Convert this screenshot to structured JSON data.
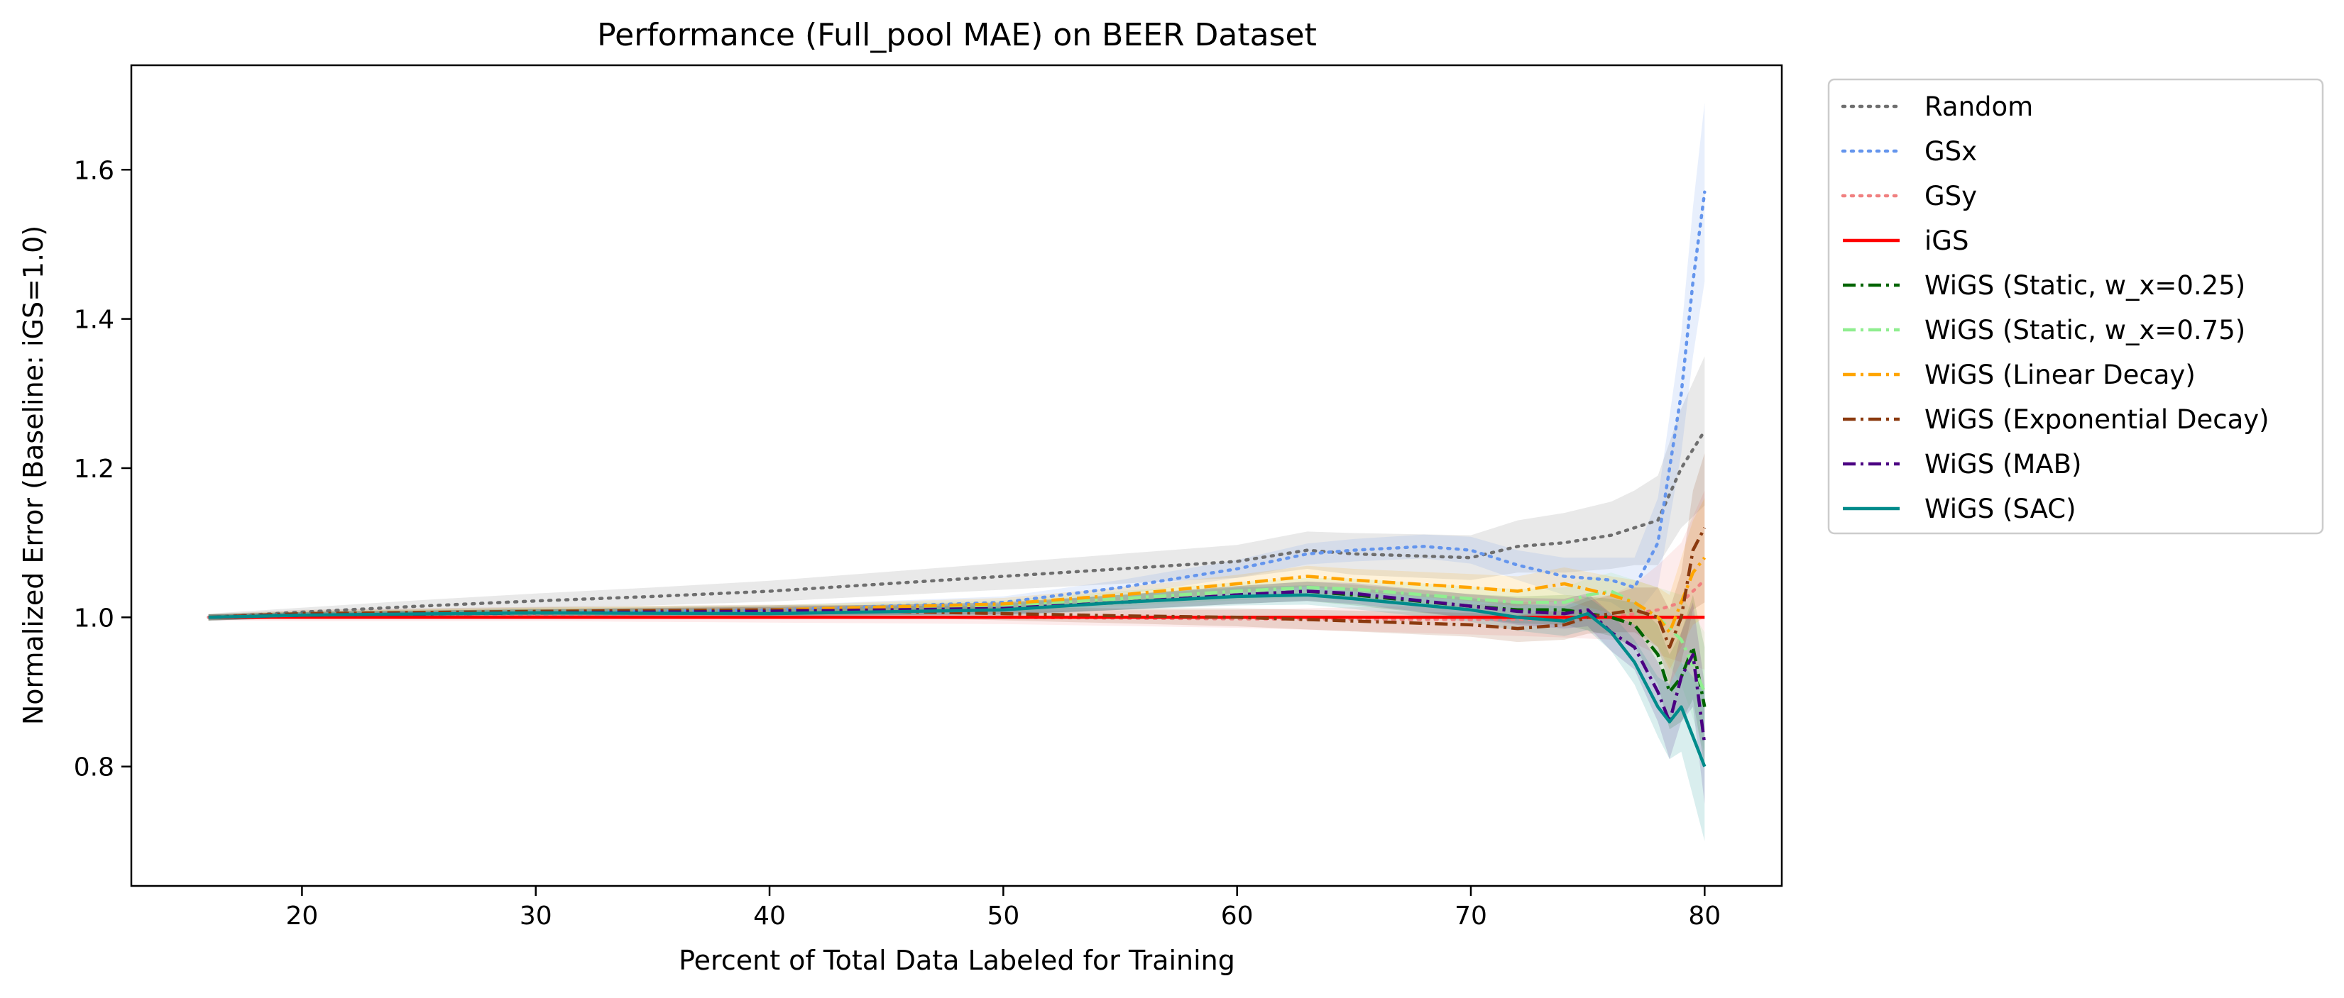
{
  "chart_data": {
    "type": "line",
    "title": "Performance (Full_pool MAE) on BEER Dataset",
    "xlabel": "Percent of Total Data Labeled for Training",
    "ylabel": "Normalized Error (Baseline: iGS=1.0)",
    "xlim": [
      12.7,
      83.3
    ],
    "ylim": [
      0.64,
      1.74
    ],
    "xticks": [
      20,
      30,
      40,
      50,
      60,
      70,
      80
    ],
    "yticks": [
      0.8,
      1.0,
      1.2,
      1.4,
      1.6
    ],
    "xtick_labels": [
      "20",
      "30",
      "40",
      "50",
      "60",
      "70",
      "80"
    ],
    "ytick_labels": [
      "0.8",
      "1.0",
      "1.2",
      "1.4",
      "1.6"
    ],
    "grid": false,
    "legend_position": "outside-right",
    "series": [
      {
        "name": "Random",
        "color": "#6e6e6e",
        "dash": "dotted",
        "x": [
          16,
          20,
          25,
          30,
          35,
          40,
          45,
          50,
          55,
          60,
          63,
          65,
          70,
          72,
          74,
          76,
          77,
          78,
          79,
          80
        ],
        "y": [
          1.0,
          1.007,
          1.015,
          1.022,
          1.028,
          1.035,
          1.045,
          1.055,
          1.065,
          1.075,
          1.09,
          1.085,
          1.08,
          1.095,
          1.1,
          1.11,
          1.12,
          1.13,
          1.2,
          1.25
        ],
        "band": [
          0.005,
          0.006,
          0.008,
          0.01,
          0.012,
          0.014,
          0.016,
          0.018,
          0.02,
          0.022,
          0.025,
          0.028,
          0.03,
          0.035,
          0.04,
          0.045,
          0.05,
          0.06,
          0.08,
          0.1
        ]
      },
      {
        "name": "GSx",
        "color": "#6495ed",
        "dash": "dotted",
        "x": [
          16,
          20,
          30,
          40,
          50,
          55,
          60,
          63,
          65,
          68,
          70,
          72,
          74,
          76,
          77,
          78,
          79,
          79.5,
          80
        ],
        "y": [
          1.0,
          1.003,
          1.006,
          1.01,
          1.02,
          1.04,
          1.065,
          1.085,
          1.09,
          1.095,
          1.09,
          1.07,
          1.055,
          1.05,
          1.04,
          1.1,
          1.3,
          1.45,
          1.57
        ],
        "band": [
          0.004,
          0.004,
          0.005,
          0.006,
          0.008,
          0.01,
          0.012,
          0.014,
          0.015,
          0.016,
          0.018,
          0.02,
          0.025,
          0.03,
          0.04,
          0.06,
          0.08,
          0.1,
          0.12
        ]
      },
      {
        "name": "GSy",
        "color": "#f08080",
        "dash": "dotted",
        "x": [
          16,
          20,
          30,
          40,
          50,
          60,
          70,
          74,
          76,
          77,
          78,
          79,
          80
        ],
        "y": [
          1.0,
          1.0,
          1.001,
          1.0,
          1.0,
          0.998,
          0.997,
          0.998,
          1.0,
          1.005,
          1.01,
          1.02,
          1.05
        ],
        "band": [
          0.004,
          0.005,
          0.006,
          0.007,
          0.009,
          0.012,
          0.02,
          0.025,
          0.03,
          0.04,
          0.06,
          0.08,
          0.12
        ]
      },
      {
        "name": "iGS",
        "color": "#ff0000",
        "dash": "solid",
        "x": [
          16,
          80
        ],
        "y": [
          1.0,
          1.0
        ]
      },
      {
        "name": "WiGS (Static, w_x=0.25)",
        "color": "#006400",
        "dash": "dashdot",
        "x": [
          16,
          20,
          30,
          40,
          50,
          55,
          60,
          63,
          65,
          70,
          72,
          74,
          76,
          77,
          78,
          78.5,
          79,
          79.5,
          80
        ],
        "y": [
          1.0,
          1.003,
          1.006,
          1.008,
          1.012,
          1.02,
          1.03,
          1.035,
          1.03,
          1.015,
          1.01,
          1.01,
          1.0,
          0.99,
          0.95,
          0.9,
          0.92,
          0.96,
          0.88
        ],
        "band": [
          0.004,
          0.004,
          0.005,
          0.006,
          0.008,
          0.01,
          0.012,
          0.013,
          0.014,
          0.016,
          0.018,
          0.02,
          0.025,
          0.03,
          0.04,
          0.05,
          0.06,
          0.07,
          0.08
        ]
      },
      {
        "name": "WiGS (Static, w_x=0.75)",
        "color": "#90ee90",
        "dash": "dashdot",
        "x": [
          16,
          20,
          30,
          40,
          50,
          55,
          60,
          63,
          65,
          70,
          72,
          74,
          75,
          76,
          77,
          78,
          79,
          80
        ],
        "y": [
          1.0,
          1.004,
          1.008,
          1.01,
          1.015,
          1.025,
          1.035,
          1.04,
          1.038,
          1.025,
          1.02,
          1.02,
          1.03,
          1.035,
          1.02,
          1.0,
          0.97,
          0.9
        ],
        "band": [
          0.004,
          0.004,
          0.005,
          0.006,
          0.008,
          0.01,
          0.012,
          0.013,
          0.014,
          0.016,
          0.018,
          0.02,
          0.022,
          0.025,
          0.03,
          0.04,
          0.06,
          0.08
        ]
      },
      {
        "name": "WiGS (Linear Decay)",
        "color": "#ffa500",
        "dash": "dashdot",
        "x": [
          16,
          20,
          30,
          40,
          50,
          55,
          60,
          63,
          65,
          70,
          72,
          74,
          76,
          77,
          78,
          78.5,
          79,
          79.5,
          80
        ],
        "y": [
          1.0,
          1.004,
          1.008,
          1.01,
          1.018,
          1.03,
          1.045,
          1.055,
          1.05,
          1.04,
          1.035,
          1.045,
          1.03,
          1.02,
          1.0,
          0.98,
          1.02,
          1.06,
          1.08
        ],
        "band": [
          0.004,
          0.004,
          0.005,
          0.006,
          0.008,
          0.01,
          0.012,
          0.014,
          0.015,
          0.018,
          0.02,
          0.022,
          0.025,
          0.03,
          0.04,
          0.05,
          0.06,
          0.07,
          0.08
        ]
      },
      {
        "name": "WiGS (Exponential Decay)",
        "color": "#8b3a0f",
        "dash": "dashdot",
        "x": [
          16,
          20,
          30,
          40,
          45,
          50,
          55,
          60,
          65,
          70,
          72,
          74,
          75,
          76,
          77,
          78,
          78.5,
          79,
          79.5,
          80
        ],
        "y": [
          1.0,
          1.005,
          1.008,
          1.01,
          1.008,
          1.005,
          1.002,
          1.0,
          0.995,
          0.99,
          0.985,
          0.99,
          1.0,
          1.005,
          1.01,
          1.0,
          0.96,
          1.0,
          1.09,
          1.12
        ],
        "band": [
          0.004,
          0.005,
          0.006,
          0.007,
          0.008,
          0.009,
          0.01,
          0.012,
          0.014,
          0.016,
          0.018,
          0.02,
          0.022,
          0.025,
          0.03,
          0.04,
          0.05,
          0.06,
          0.08,
          0.1
        ]
      },
      {
        "name": "WiGS (MAB)",
        "color": "#4b0082",
        "dash": "dashdot",
        "x": [
          16,
          20,
          30,
          40,
          50,
          55,
          60,
          63,
          65,
          70,
          72,
          74,
          75,
          76,
          77,
          78,
          78.5,
          79,
          79.5,
          80
        ],
        "y": [
          1.0,
          1.003,
          1.006,
          1.008,
          1.012,
          1.02,
          1.03,
          1.035,
          1.032,
          1.015,
          1.008,
          1.005,
          1.01,
          0.98,
          0.96,
          0.9,
          0.86,
          0.92,
          0.95,
          0.83
        ],
        "band": [
          0.004,
          0.004,
          0.005,
          0.006,
          0.008,
          0.01,
          0.012,
          0.013,
          0.014,
          0.016,
          0.018,
          0.02,
          0.022,
          0.025,
          0.03,
          0.04,
          0.05,
          0.06,
          0.07,
          0.08
        ]
      },
      {
        "name": "WiGS (SAC)",
        "color": "#008b8b",
        "dash": "solid",
        "x": [
          16,
          20,
          30,
          40,
          50,
          55,
          60,
          63,
          65,
          70,
          72,
          74,
          75,
          76,
          77,
          78,
          78.5,
          79,
          79.5,
          80
        ],
        "y": [
          1.0,
          1.003,
          1.006,
          1.005,
          1.01,
          1.02,
          1.028,
          1.03,
          1.025,
          1.01,
          1.0,
          0.995,
          1.005,
          0.98,
          0.94,
          0.88,
          0.86,
          0.88,
          0.84,
          0.8
        ],
        "band": [
          0.004,
          0.004,
          0.005,
          0.006,
          0.008,
          0.01,
          0.012,
          0.013,
          0.014,
          0.016,
          0.018,
          0.02,
          0.022,
          0.025,
          0.03,
          0.04,
          0.05,
          0.06,
          0.08,
          0.1
        ]
      }
    ]
  }
}
